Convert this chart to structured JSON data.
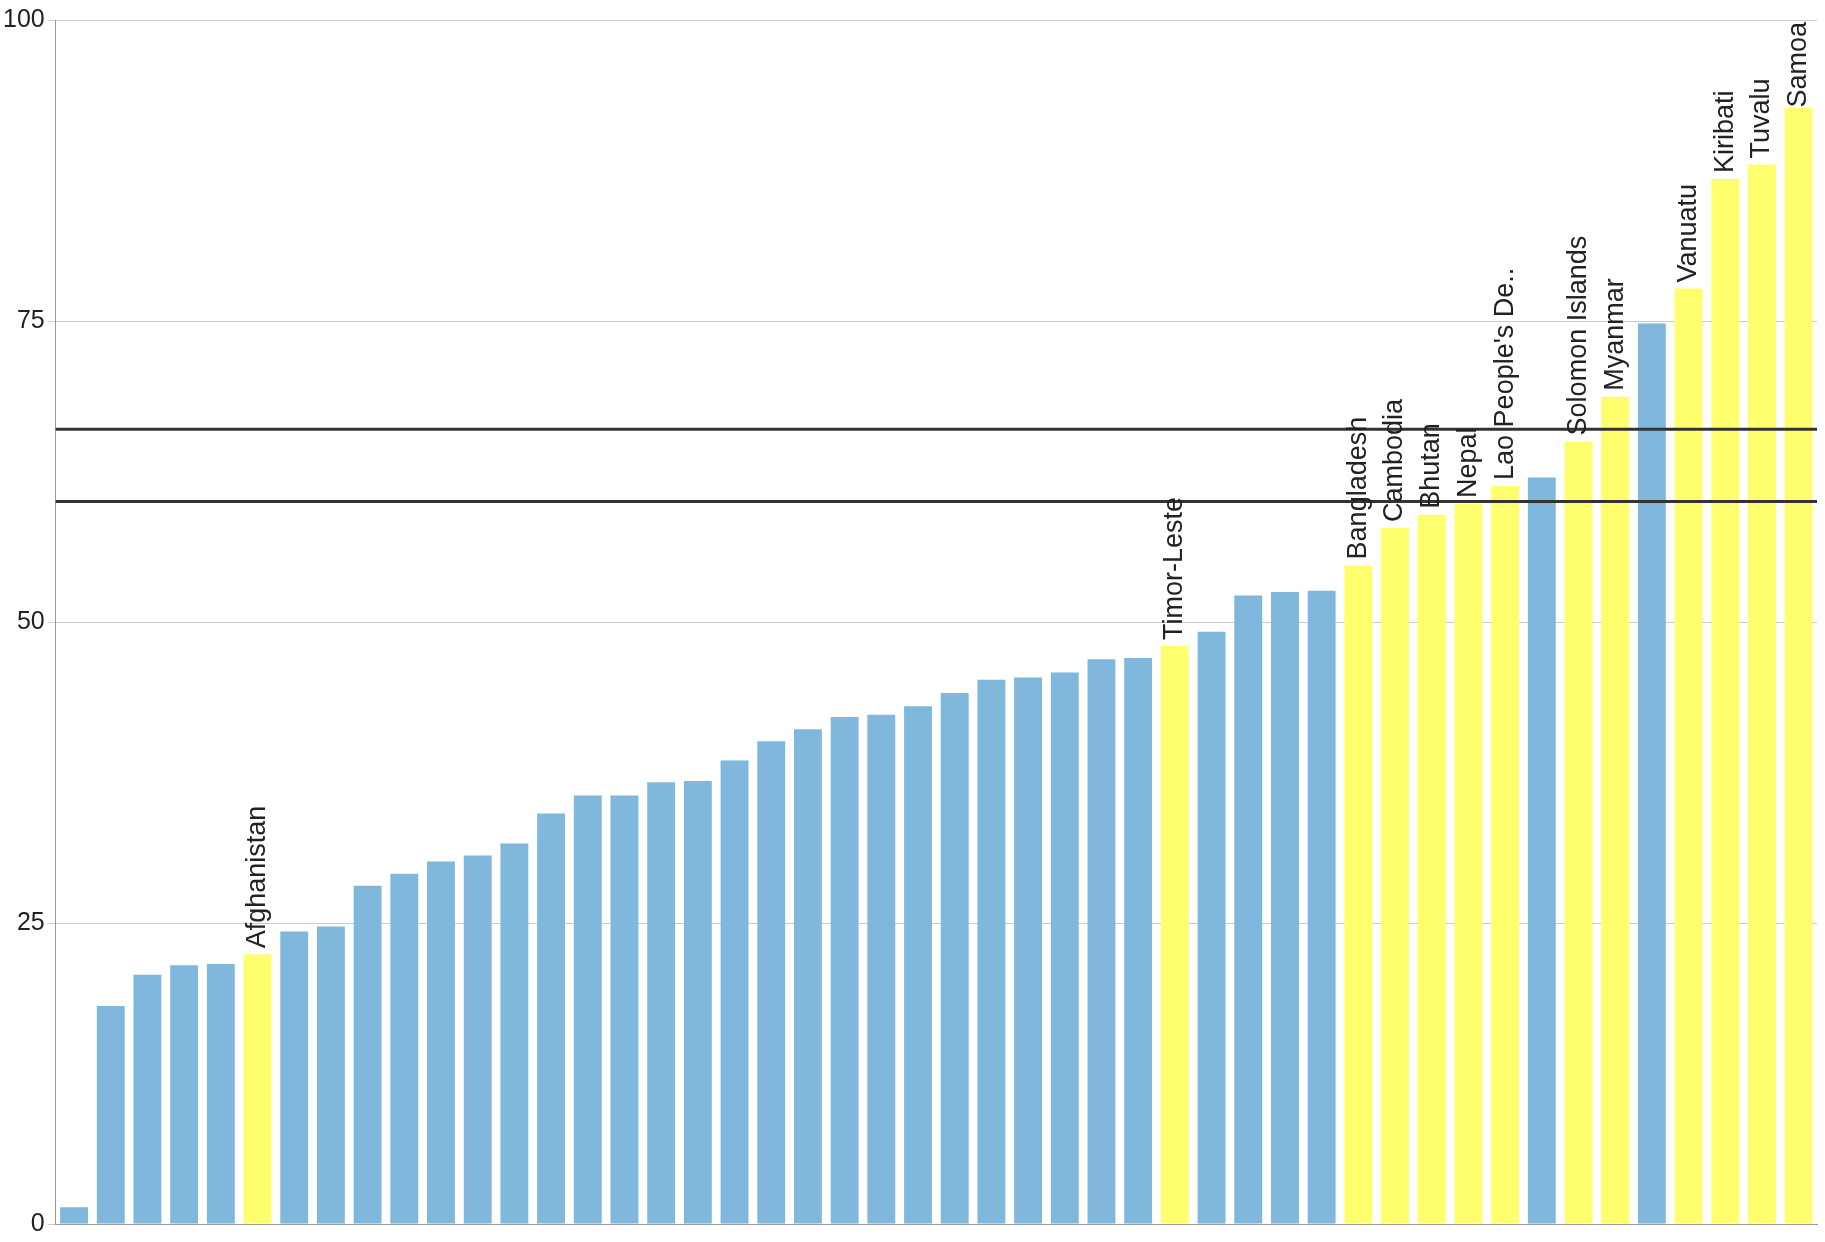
{
  "chart_data": {
    "type": "bar",
    "categories": [
      null,
      null,
      null,
      null,
      null,
      "Afghanistan",
      null,
      null,
      null,
      null,
      null,
      null,
      null,
      null,
      null,
      null,
      null,
      null,
      null,
      null,
      null,
      null,
      null,
      null,
      null,
      null,
      null,
      null,
      null,
      null,
      "Timor-Leste",
      null,
      null,
      null,
      null,
      "Bangladesh",
      "Cambodia",
      "Bhutan",
      "Nepal",
      "Lao People's De..",
      null,
      "Solomon Islands",
      "Myanmar",
      null,
      "Vanuatu",
      "Kiribati",
      "Tuvalu",
      "Samoa"
    ],
    "values": [
      1.4,
      18.1,
      20.7,
      21.5,
      21.6,
      22.4,
      24.3,
      24.7,
      28.1,
      29.1,
      30.1,
      30.6,
      31.6,
      34.1,
      35.6,
      35.6,
      36.7,
      36.8,
      38.5,
      40.1,
      41.1,
      42.1,
      42.3,
      43.0,
      44.1,
      45.2,
      45.4,
      45.8,
      46.9,
      47.0,
      48.0,
      49.2,
      52.2,
      52.5,
      52.6,
      54.7,
      57.8,
      58.9,
      59.8,
      61.3,
      62.0,
      65.0,
      68.7,
      74.8,
      77.7,
      86.8,
      88.0,
      92.7
    ],
    "colors": [
      "#7fb8dc",
      "#7fb8dc",
      "#7fb8dc",
      "#7fb8dc",
      "#7fb8dc",
      "#ffff6e",
      "#7fb8dc",
      "#7fb8dc",
      "#7fb8dc",
      "#7fb8dc",
      "#7fb8dc",
      "#7fb8dc",
      "#7fb8dc",
      "#7fb8dc",
      "#7fb8dc",
      "#7fb8dc",
      "#7fb8dc",
      "#7fb8dc",
      "#7fb8dc",
      "#7fb8dc",
      "#7fb8dc",
      "#7fb8dc",
      "#7fb8dc",
      "#7fb8dc",
      "#7fb8dc",
      "#7fb8dc",
      "#7fb8dc",
      "#7fb8dc",
      "#7fb8dc",
      "#7fb8dc",
      "#ffff6e",
      "#7fb8dc",
      "#7fb8dc",
      "#7fb8dc",
      "#7fb8dc",
      "#ffff6e",
      "#ffff6e",
      "#ffff6e",
      "#ffff6e",
      "#ffff6e",
      "#7fb8dc",
      "#ffff6e",
      "#ffff6e",
      "#7fb8dc",
      "#ffff6e",
      "#ffff6e",
      "#ffff6e",
      "#ffff6e"
    ],
    "ylim": [
      0,
      100
    ],
    "yticks": [
      0,
      25,
      50,
      75,
      100
    ],
    "grid": "y",
    "ref_lines": [
      {
        "axis": "y",
        "value": 66,
        "color": "#333333"
      },
      {
        "axis": "y",
        "value": 60,
        "color": "#333333"
      }
    ]
  }
}
